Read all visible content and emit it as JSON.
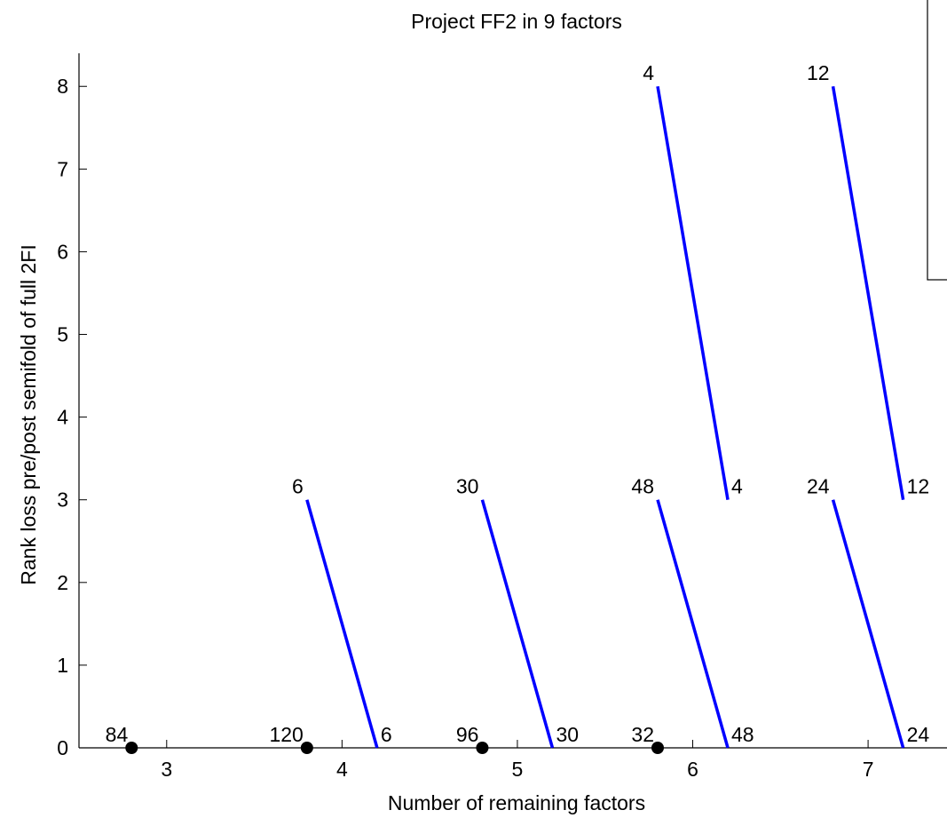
{
  "chart_data": {
    "type": "line",
    "title": "Project FF2 in 9 factors",
    "xlabel": "Number of remaining factors",
    "ylabel": "Rank loss pre/post semifold of full 2FI",
    "xlim": [
      2.5,
      7.45
    ],
    "ylim": [
      0,
      8.4
    ],
    "xticks": [
      3,
      4,
      5,
      6,
      7
    ],
    "yticks": [
      0,
      1,
      2,
      3,
      4,
      5,
      6,
      7,
      8
    ],
    "grid": false,
    "legend": "top-right",
    "colors": {
      "segment": "#0000ff",
      "point": "#000000",
      "axis": "#000000"
    },
    "points": [
      {
        "x": 2.8,
        "y": 0,
        "label": "84"
      },
      {
        "x": 3.8,
        "y": 0,
        "label": "120"
      },
      {
        "x": 4.8,
        "y": 0,
        "label": "96"
      },
      {
        "x": 5.8,
        "y": 0,
        "label": "32"
      }
    ],
    "segments": [
      {
        "x1": 3.8,
        "y1": 3,
        "x2": 4.2,
        "y2": 0,
        "label_start": "6",
        "label_end": "6"
      },
      {
        "x1": 4.8,
        "y1": 3,
        "x2": 5.2,
        "y2": 0,
        "label_start": "30",
        "label_end": "30"
      },
      {
        "x1": 5.8,
        "y1": 3,
        "x2": 6.2,
        "y2": 0,
        "label_start": "48",
        "label_end": "48"
      },
      {
        "x1": 6.8,
        "y1": 3,
        "x2": 7.2,
        "y2": 0,
        "label_start": "24",
        "label_end": "24"
      },
      {
        "x1": 5.8,
        "y1": 8,
        "x2": 6.2,
        "y2": 3,
        "label_start": "4",
        "label_end": "4"
      },
      {
        "x1": 6.8,
        "y1": 8,
        "x2": 7.2,
        "y2": 3,
        "label_start": "12",
        "label_end": "12"
      }
    ]
  }
}
